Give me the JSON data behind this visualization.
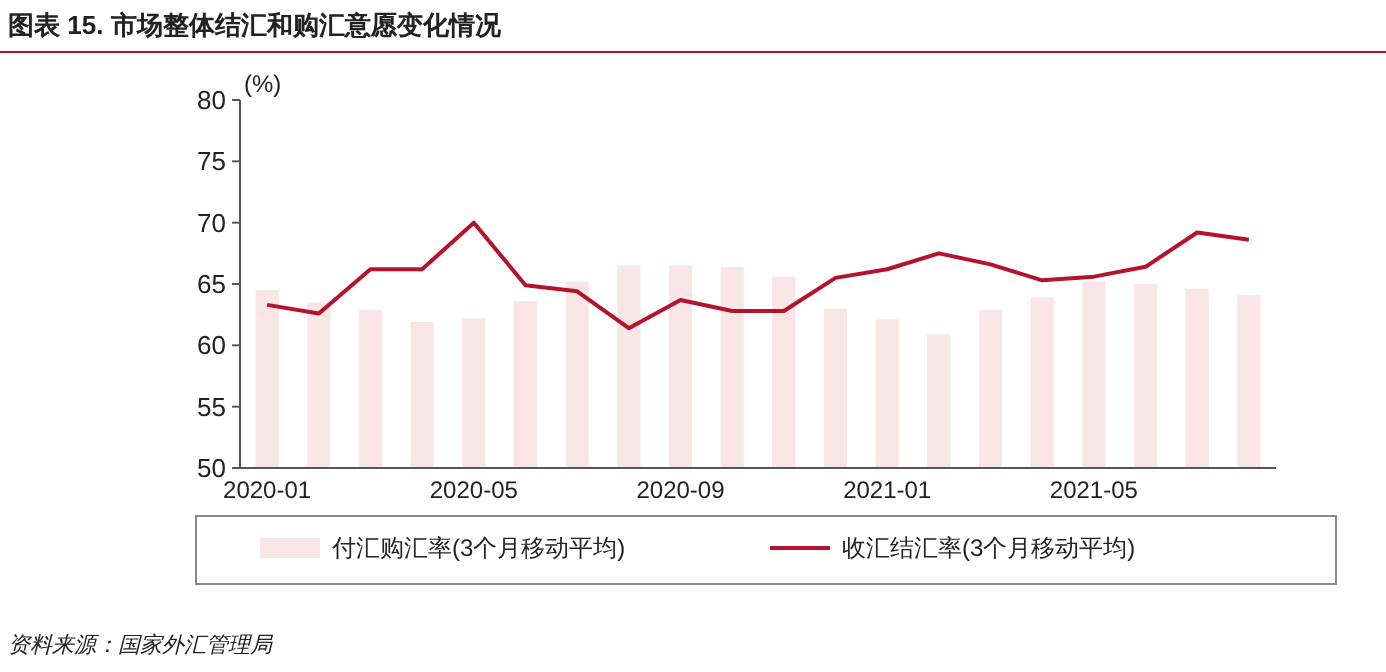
{
  "chart_data": {
    "type": "bar",
    "title": "图表 15. 市场整体结汇和购汇意愿变化情况",
    "ylabel": "(%)",
    "categories": [
      "2020-01",
      null,
      null,
      null,
      "2020-05",
      null,
      null,
      null,
      "2020-09",
      null,
      null,
      null,
      "2021-01",
      null,
      null,
      null,
      "2021-05",
      null,
      null,
      null
    ],
    "series": [
      {
        "name": "付汇购汇率(3个月移动平均)",
        "color": "#f9e5e5",
        "values": [
          64.5,
          63.5,
          62.9,
          61.9,
          62.2,
          63.6,
          65.2,
          66.5,
          66.5,
          66.4,
          65.6,
          63.0,
          62.1,
          60.9,
          62.9,
          63.9,
          65.2,
          65.0,
          64.6,
          64.1
        ]
      },
      {
        "name": "收汇结汇率(3个月移动平均)",
        "type": "line",
        "color": "#b5122e",
        "values": [
          63.3,
          62.6,
          66.2,
          66.2,
          70.0,
          64.9,
          64.4,
          61.4,
          63.7,
          62.8,
          62.8,
          65.5,
          66.2,
          67.5,
          66.6,
          65.3,
          65.6,
          66.4,
          69.2,
          68.6
        ]
      }
    ],
    "ylim": [
      50,
      80
    ],
    "yticks": [
      50,
      55,
      60,
      65,
      70,
      75,
      80
    ],
    "grid": false,
    "legend": "bottom",
    "annotations": [
      "资料来源：国家外汇管理局"
    ]
  }
}
